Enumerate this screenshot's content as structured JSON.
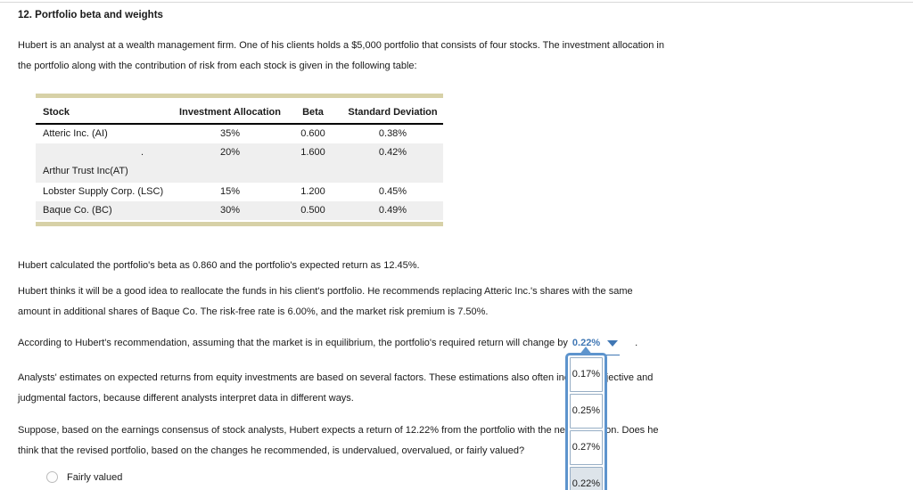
{
  "page": {
    "title": "12. Portfolio beta and weights",
    "intro_lines": [
      "Hubert is an analyst at a wealth management firm. One of his clients holds a $5,000 portfolio that consists of four stocks. The investment allocation in",
      "the portfolio along with the contribution of risk from each stock is given in the following table:"
    ],
    "beta_text": "Hubert calculated the portfolio's beta as 0.860 and the portfolio's expected return as 12.45%.",
    "realloc_lines": [
      "Hubert thinks it will be a good idea to reallocate the funds in his client's portfolio. He recommends replacing Atteric Inc.'s shares with the same",
      "amount in additional shares of Baque Co. The risk-free rate is 6.00%, and the market risk premium is 7.50%."
    ],
    "equilibrium_prefix": "According to Hubert's recommendation, assuming that the market is in equilibrium, the portfolio's required return will change by",
    "equilibrium_suffix": ".",
    "analysts_lines": [
      "Analysts' estimates on expected returns from equity investments are based on several factors. These estimations also often include subjective and",
      "judgmental factors, because different analysts interpret data in different ways."
    ],
    "question_lines": [
      "Suppose, based on the earnings consensus of stock analysts, Hubert expects a return of 12.22% from the portfolio with the new allocation. Does he",
      "think that the revised portfolio, based on the changes he recommended, is undervalued, overvalued, or fairly valued?"
    ],
    "radio_label": "Fairly valued"
  },
  "table": {
    "columns": [
      "Stock",
      "Investment Allocation",
      "Beta",
      "Standard Deviation"
    ],
    "rows": [
      {
        "stock": "Atteric Inc. (AI)",
        "allocation": "35%",
        "beta": "0.600",
        "std_dev": "0.38%"
      },
      {
        "stock_marker": ".",
        "stock": "Arthur Trust Inc(AT)",
        "allocation": "20%",
        "beta": "1.600",
        "std_dev": "0.42%"
      },
      {
        "stock": "Lobster Supply Corp. (LSC)",
        "allocation": "15%",
        "beta": "1.200",
        "std_dev": "0.45%"
      },
      {
        "stock": "Baque Co. (BC)",
        "allocation": "30%",
        "beta": "0.500",
        "std_dev": "0.49%"
      }
    ]
  },
  "dropdown": {
    "selected": "0.22%",
    "options": [
      "0.17%",
      "0.25%",
      "0.27%",
      "0.22%"
    ],
    "highlighted_option": "0.22%"
  },
  "colors": {
    "accent_blue": "#4077b4",
    "menu_border_blue": "#5d94cd",
    "selected_option_bg": "#dde4ea",
    "table_accent_tan": "#d7d1a7",
    "row_stripe_gray": "#efefef"
  }
}
